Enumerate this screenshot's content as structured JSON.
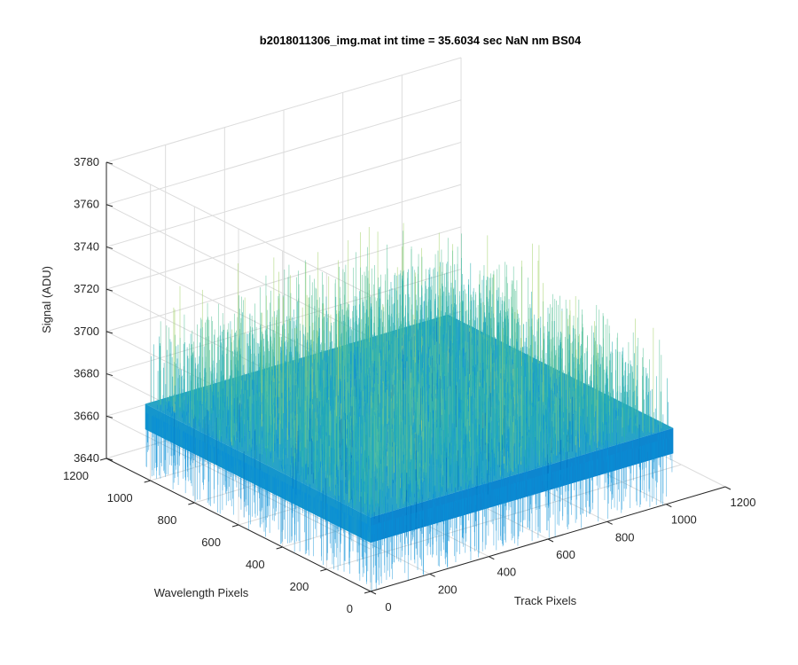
{
  "chart_data": {
    "type": "surface3d",
    "title": "b2018011306_img.mat int time = 35.6034 sec  NaN nm BS04",
    "xlabel": "Track Pixels",
    "ylabel": "Wavelength Pixels",
    "zlabel": "Signal (ADU)",
    "xlim": [
      0,
      1200
    ],
    "ylim": [
      0,
      1200
    ],
    "zlim": [
      3640,
      3780
    ],
    "x_ticks": [
      "0",
      "200",
      "400",
      "600",
      "800",
      "1000",
      "1200"
    ],
    "y_ticks": [
      "0",
      "200",
      "400",
      "600",
      "800",
      "1000",
      "1200"
    ],
    "z_ticks": [
      "3640",
      "3660",
      "3680",
      "3700",
      "3720",
      "3740",
      "3760",
      "3780"
    ],
    "data_extent": {
      "x": [
        0,
        1024
      ],
      "y": [
        0,
        1024
      ]
    },
    "mean_signal": 3675,
    "noise_range": [
      3640,
      3740
    ],
    "grid": true,
    "colormap": [
      "#0072bd",
      "#0a8fd6",
      "#1aa3c8",
      "#2ab0b0",
      "#5ec49a",
      "#a6d36e"
    ]
  }
}
